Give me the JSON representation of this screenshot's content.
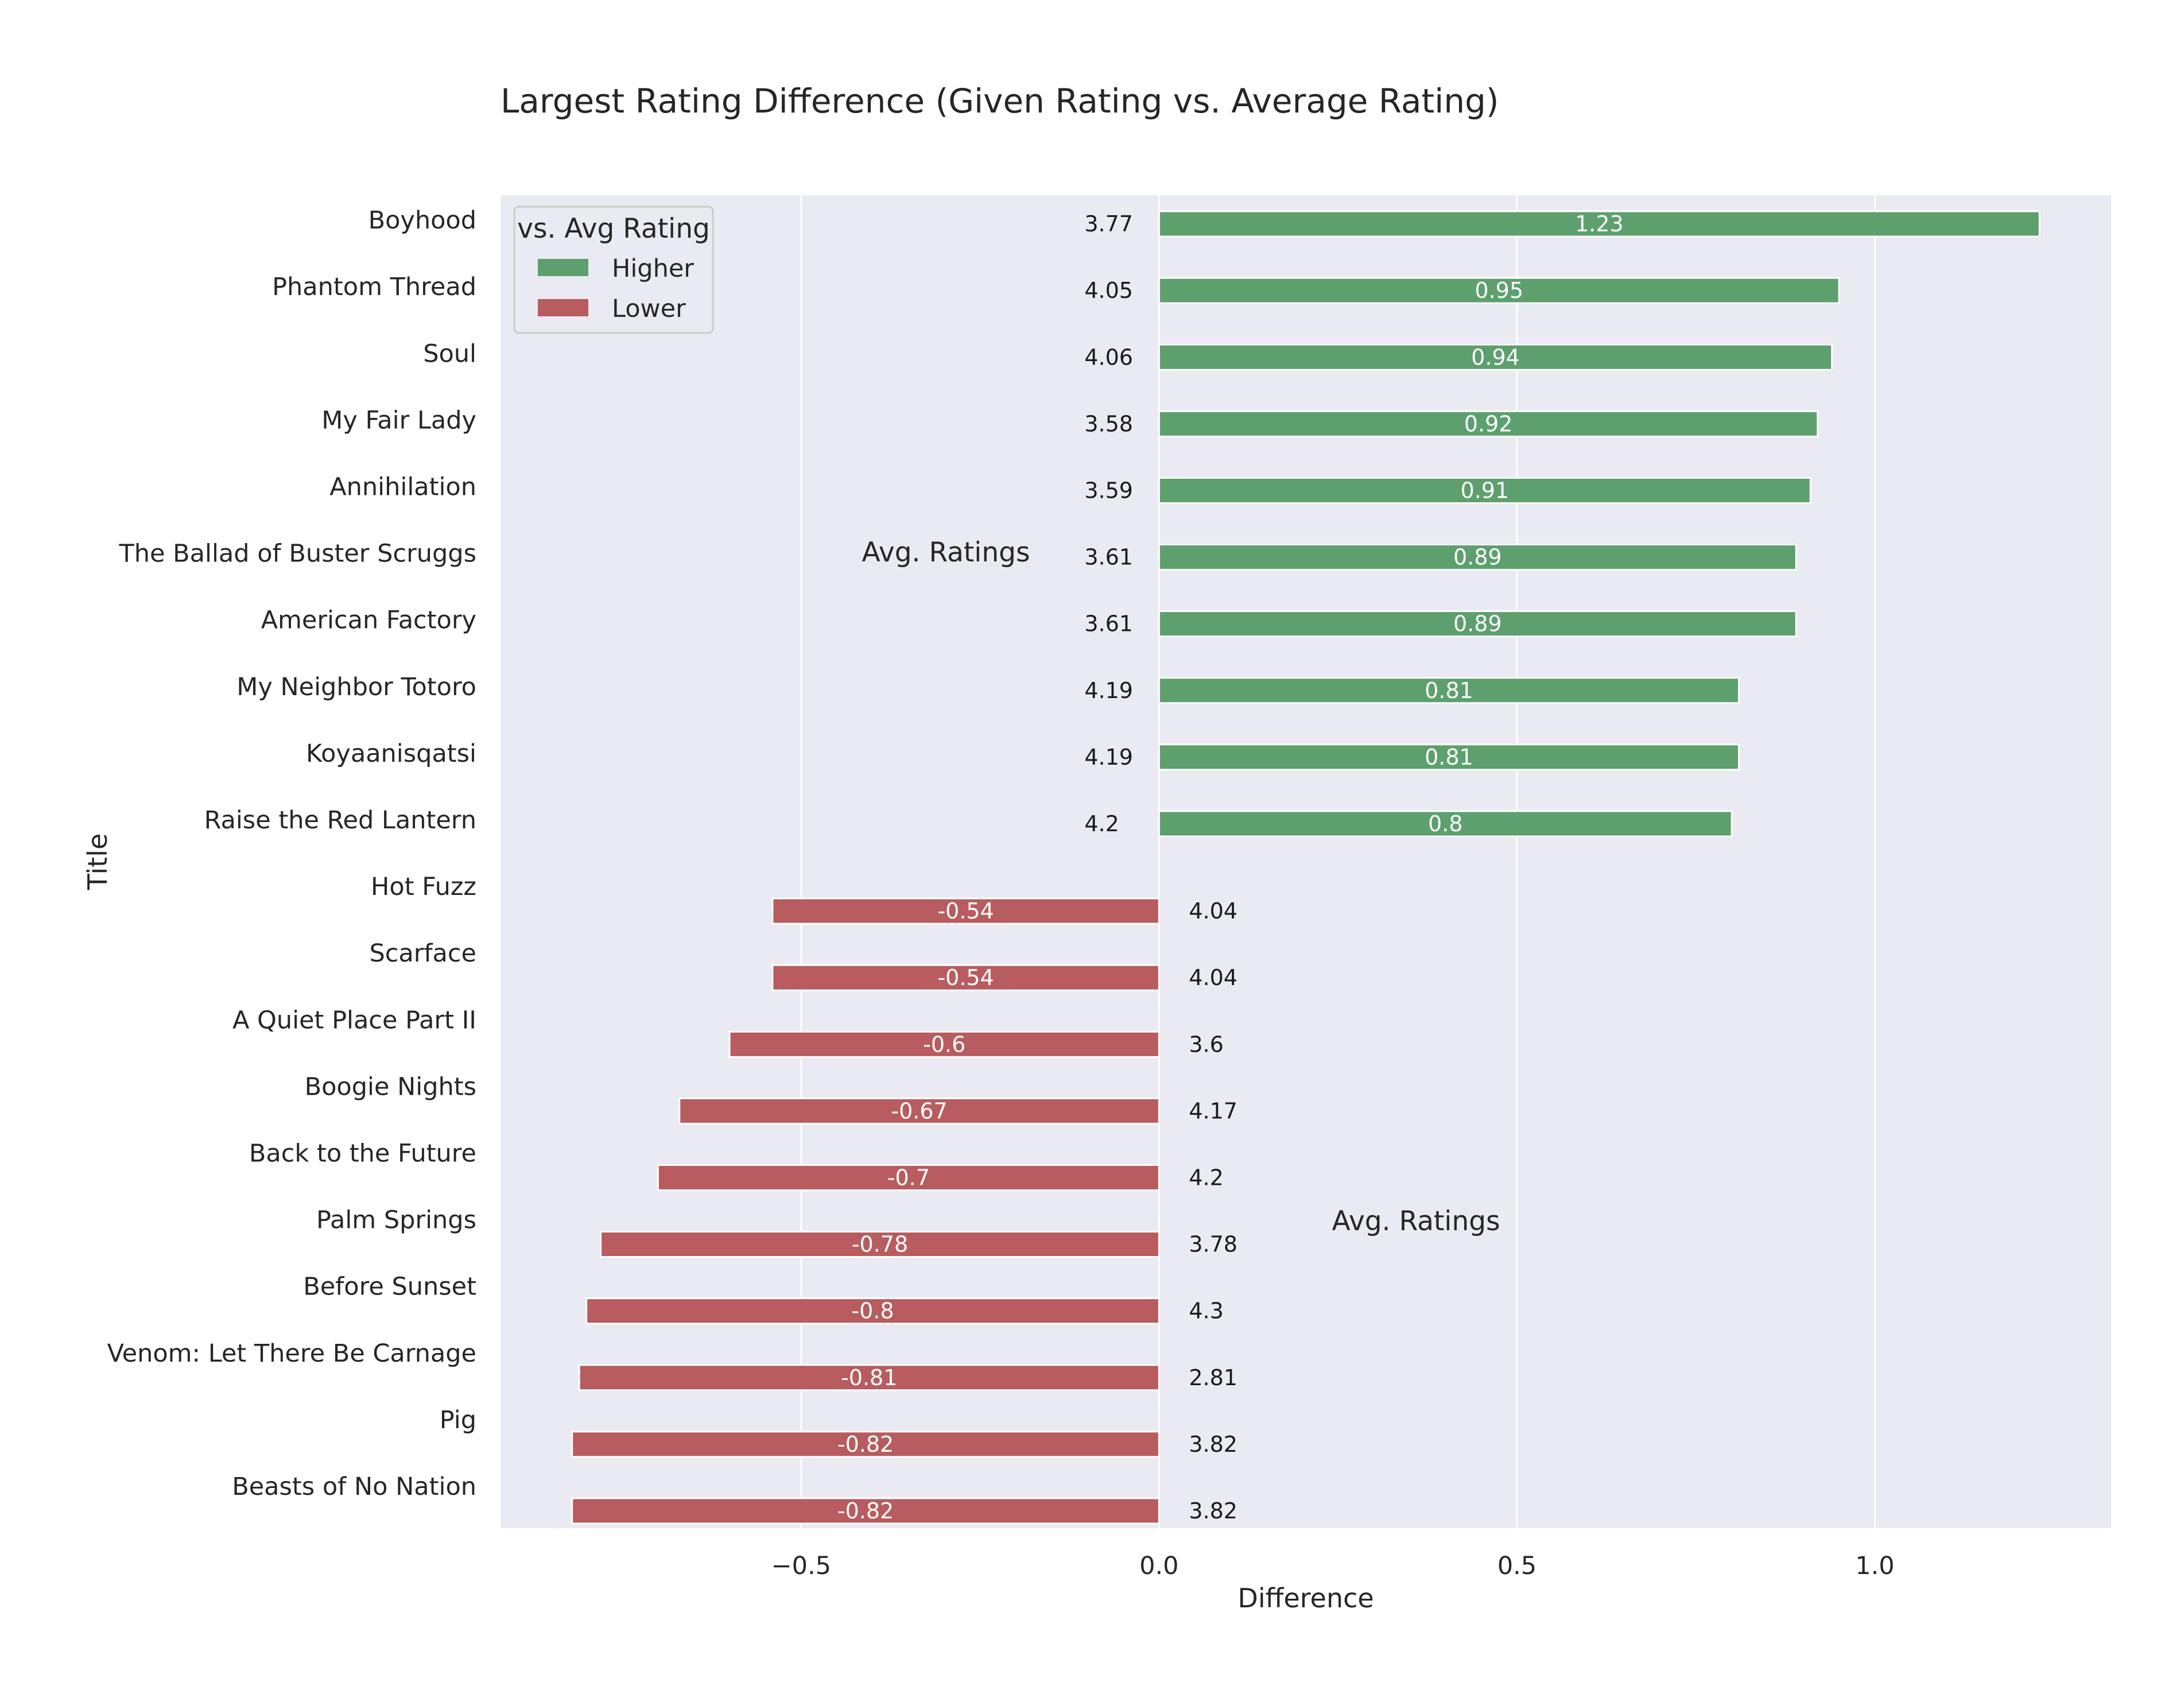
{
  "chart_data": {
    "type": "bar",
    "orientation": "horizontal",
    "title": "Largest Rating Difference (Given Rating vs. Average Rating)",
    "xlabel": "Difference",
    "ylabel": "Title",
    "xlim": [
      -0.92,
      1.33
    ],
    "xticks": [
      -0.5,
      0.0,
      0.5,
      1.0
    ],
    "xtick_labels": [
      "−0.5",
      "0.0",
      "0.5",
      "1.0"
    ],
    "grid": true,
    "legend": {
      "title": "vs. Avg Rating",
      "placement": "top-left",
      "entries": [
        {
          "label": "Higher",
          "color": "#5da06e"
        },
        {
          "label": "Lower",
          "color": "#b85c5f"
        }
      ]
    },
    "annotations": [
      "Avg. Ratings",
      "Avg. Ratings"
    ],
    "categories": [
      "Boyhood",
      "Phantom Thread",
      "Soul",
      "My Fair Lady",
      "Annihilation",
      "The Ballad of Buster Scruggs",
      "American Factory",
      "My Neighbor Totoro",
      "Koyaanisqatsi",
      "Raise the Red Lantern",
      "Hot Fuzz",
      "Scarface",
      "A Quiet Place Part II",
      "Boogie Nights",
      "Back to the Future",
      "Palm Springs",
      "Before Sunset",
      "Venom: Let There Be Carnage",
      "Pig",
      "Beasts of No Nation"
    ],
    "series": [
      {
        "name": "Higher",
        "color": "#5da06e",
        "values": [
          1.23,
          0.95,
          0.94,
          0.92,
          0.91,
          0.89,
          0.89,
          0.81,
          0.81,
          0.8,
          null,
          null,
          null,
          null,
          null,
          null,
          null,
          null,
          null,
          null
        ],
        "labels": [
          "1.23",
          "0.95",
          "0.94",
          "0.92",
          "0.91",
          "0.89",
          "0.89",
          "0.81",
          "0.81",
          "0.8",
          "",
          "",
          "",
          "",
          "",
          "",
          "",
          "",
          "",
          ""
        ]
      },
      {
        "name": "Lower",
        "color": "#b85c5f",
        "values": [
          null,
          null,
          null,
          null,
          null,
          null,
          null,
          null,
          null,
          null,
          -0.54,
          -0.54,
          -0.6,
          -0.67,
          -0.7,
          -0.78,
          -0.8,
          -0.81,
          -0.82,
          -0.82
        ],
        "labels": [
          "",
          "",
          "",
          "",
          "",
          "",
          "",
          "",
          "",
          "",
          "-0.54",
          "-0.54",
          "-0.6",
          "-0.67",
          "-0.7",
          "-0.78",
          "-0.8",
          "-0.81",
          "-0.82",
          "-0.82"
        ]
      }
    ],
    "avg_ratings": [
      "3.77",
      "4.05",
      "4.06",
      "3.58",
      "3.59",
      "3.61",
      "3.61",
      "4.19",
      "4.19",
      "4.2",
      "4.04",
      "4.04",
      "3.6",
      "4.17",
      "4.2",
      "3.78",
      "4.3",
      "2.81",
      "3.82",
      "3.82"
    ],
    "colors": {
      "plot_background": "#eaeaf2",
      "grid": "#ffffff",
      "higher": "#5da06e",
      "lower": "#b85c5f"
    }
  }
}
